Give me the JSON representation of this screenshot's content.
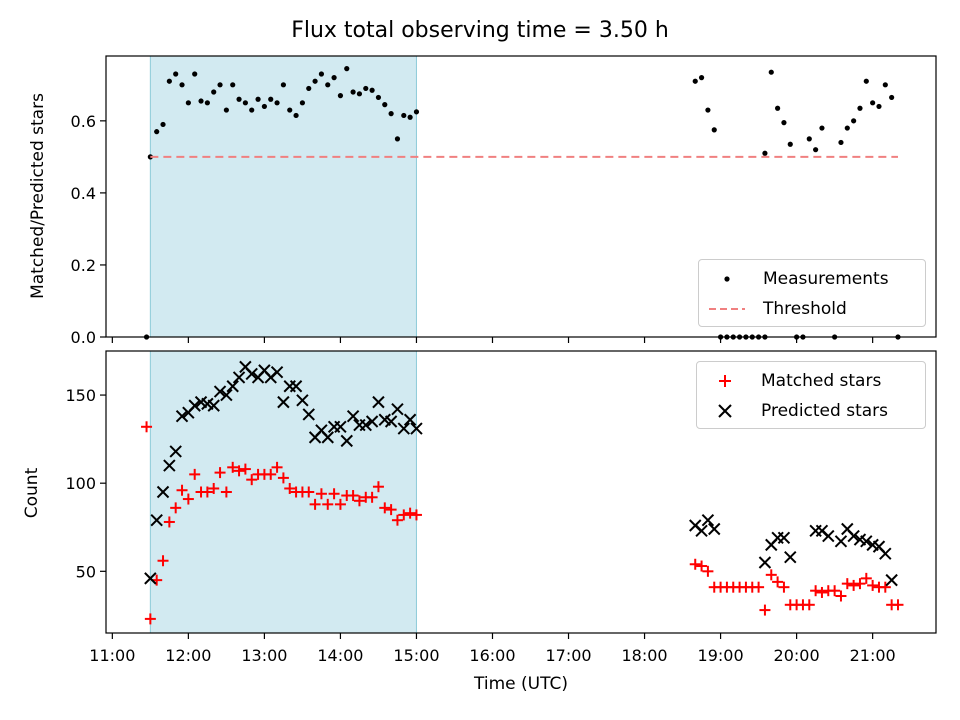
{
  "figure": {
    "title": "Flux total observing time = 3.50 h",
    "xlabel": "Time (UTC)"
  },
  "chart_data": [
    {
      "type": "scatter",
      "panel": "top",
      "ylabel": "Matched/Predicted stars",
      "xlim": [
        "10:55",
        "21:50"
      ],
      "ylim": [
        0,
        0.78
      ],
      "yticks": [
        0.0,
        0.2,
        0.4,
        0.6
      ],
      "xticks": [
        "11:00",
        "12:00",
        "13:00",
        "14:00",
        "15:00",
        "16:00",
        "17:00",
        "18:00",
        "19:00",
        "20:00",
        "21:00"
      ],
      "shaded_interval": {
        "start": "11:30",
        "end": "15:00",
        "color": "#add8e6"
      },
      "legend_position": "lower right",
      "series": [
        {
          "name": "Measurements",
          "marker": "dot",
          "color": "#000000",
          "points": [
            [
              "11:27",
              0.0
            ],
            [
              "11:30",
              0.5
            ],
            [
              "11:35",
              0.57
            ],
            [
              "11:40",
              0.59
            ],
            [
              "11:45",
              0.71
            ],
            [
              "11:50",
              0.73
            ],
            [
              "11:55",
              0.7
            ],
            [
              "12:00",
              0.65
            ],
            [
              "12:05",
              0.73
            ],
            [
              "12:10",
              0.655
            ],
            [
              "12:15",
              0.65
            ],
            [
              "12:20",
              0.68
            ],
            [
              "12:25",
              0.7
            ],
            [
              "12:30",
              0.63
            ],
            [
              "12:35",
              0.7
            ],
            [
              "12:40",
              0.66
            ],
            [
              "12:45",
              0.65
            ],
            [
              "12:50",
              0.63
            ],
            [
              "12:55",
              0.66
            ],
            [
              "13:00",
              0.64
            ],
            [
              "13:05",
              0.66
            ],
            [
              "13:10",
              0.65
            ],
            [
              "13:15",
              0.7
            ],
            [
              "13:20",
              0.63
            ],
            [
              "13:25",
              0.615
            ],
            [
              "13:30",
              0.65
            ],
            [
              "13:35",
              0.69
            ],
            [
              "13:40",
              0.71
            ],
            [
              "13:45",
              0.73
            ],
            [
              "13:50",
              0.7
            ],
            [
              "13:55",
              0.72
            ],
            [
              "14:00",
              0.67
            ],
            [
              "14:05",
              0.745
            ],
            [
              "14:10",
              0.68
            ],
            [
              "14:15",
              0.675
            ],
            [
              "14:20",
              0.69
            ],
            [
              "14:25",
              0.685
            ],
            [
              "14:30",
              0.665
            ],
            [
              "14:35",
              0.645
            ],
            [
              "14:40",
              0.62
            ],
            [
              "14:45",
              0.55
            ],
            [
              "14:50",
              0.615
            ],
            [
              "14:55",
              0.61
            ],
            [
              "15:00",
              0.625
            ],
            [
              "18:40",
              0.71
            ],
            [
              "18:45",
              0.72
            ],
            [
              "18:50",
              0.63
            ],
            [
              "18:55",
              0.575
            ],
            [
              "19:00",
              0.0
            ],
            [
              "19:05",
              0.0
            ],
            [
              "19:10",
              0.0
            ],
            [
              "19:15",
              0.0
            ],
            [
              "19:20",
              0.0
            ],
            [
              "19:25",
              0.0
            ],
            [
              "19:30",
              0.0
            ],
            [
              "19:35",
              0.0
            ],
            [
              "19:35",
              0.51
            ],
            [
              "19:40",
              0.735
            ],
            [
              "19:45",
              0.635
            ],
            [
              "19:50",
              0.595
            ],
            [
              "19:55",
              0.535
            ],
            [
              "20:00",
              0.0
            ],
            [
              "20:05",
              0.0
            ],
            [
              "20:10",
              0.55
            ],
            [
              "20:15",
              0.52
            ],
            [
              "20:20",
              0.58
            ],
            [
              "20:30",
              0.0
            ],
            [
              "20:35",
              0.54
            ],
            [
              "20:40",
              0.58
            ],
            [
              "20:45",
              0.6
            ],
            [
              "20:50",
              0.635
            ],
            [
              "20:55",
              0.71
            ],
            [
              "21:00",
              0.65
            ],
            [
              "21:05",
              0.64
            ],
            [
              "21:10",
              0.7
            ],
            [
              "21:15",
              0.665
            ],
            [
              "21:20",
              0.0
            ]
          ]
        },
        {
          "name": "Threshold",
          "type": "line",
          "style": "dashed",
          "color": "#f08080",
          "points": [
            [
              "11:30",
              0.5
            ],
            [
              "21:20",
              0.5
            ]
          ]
        }
      ]
    },
    {
      "type": "scatter",
      "panel": "bottom",
      "ylabel": "Count",
      "xlim": [
        "10:55",
        "21:50"
      ],
      "ylim": [
        15,
        175
      ],
      "yticks": [
        50,
        100,
        150
      ],
      "xticks": [
        "11:00",
        "12:00",
        "13:00",
        "14:00",
        "15:00",
        "16:00",
        "17:00",
        "18:00",
        "19:00",
        "20:00",
        "21:00"
      ],
      "shaded_interval": {
        "start": "11:30",
        "end": "15:00",
        "color": "#add8e6"
      },
      "legend_position": "upper right",
      "series": [
        {
          "name": "Matched stars",
          "marker": "plus",
          "color": "#ff0000",
          "points": [
            [
              "11:27",
              132
            ],
            [
              "11:30",
              23
            ],
            [
              "11:35",
              45
            ],
            [
              "11:40",
              56
            ],
            [
              "11:45",
              78
            ],
            [
              "11:50",
              86
            ],
            [
              "11:55",
              96
            ],
            [
              "12:00",
              91
            ],
            [
              "12:05",
              105
            ],
            [
              "12:10",
              95
            ],
            [
              "12:15",
              95
            ],
            [
              "12:20",
              97
            ],
            [
              "12:25",
              106
            ],
            [
              "12:30",
              95
            ],
            [
              "12:35",
              109
            ],
            [
              "12:40",
              107
            ],
            [
              "12:45",
              108
            ],
            [
              "12:50",
              102
            ],
            [
              "12:55",
              105
            ],
            [
              "13:00",
              105
            ],
            [
              "13:05",
              105
            ],
            [
              "13:10",
              109
            ],
            [
              "13:15",
              103
            ],
            [
              "13:20",
              97
            ],
            [
              "13:25",
              95
            ],
            [
              "13:30",
              95
            ],
            [
              "13:35",
              95
            ],
            [
              "13:40",
              88
            ],
            [
              "13:45",
              94
            ],
            [
              "13:50",
              88
            ],
            [
              "13:55",
              94
            ],
            [
              "14:00",
              88
            ],
            [
              "14:05",
              93
            ],
            [
              "14:10",
              93
            ],
            [
              "14:15",
              90
            ],
            [
              "14:20",
              92
            ],
            [
              "14:25",
              92
            ],
            [
              "14:30",
              98
            ],
            [
              "14:35",
              86
            ],
            [
              "14:40",
              85
            ],
            [
              "14:45",
              79
            ],
            [
              "14:50",
              82
            ],
            [
              "14:55",
              83
            ],
            [
              "15:00",
              82
            ],
            [
              "18:40",
              54
            ],
            [
              "18:45",
              53
            ],
            [
              "18:50",
              50
            ],
            [
              "18:55",
              41
            ],
            [
              "19:00",
              41
            ],
            [
              "19:05",
              41
            ],
            [
              "19:10",
              41
            ],
            [
              "19:15",
              41
            ],
            [
              "19:20",
              41
            ],
            [
              "19:25",
              41
            ],
            [
              "19:30",
              41
            ],
            [
              "19:35",
              28
            ],
            [
              "19:40",
              48
            ],
            [
              "19:45",
              44
            ],
            [
              "19:50",
              41
            ],
            [
              "19:55",
              31
            ],
            [
              "20:00",
              31
            ],
            [
              "20:05",
              31
            ],
            [
              "20:10",
              31
            ],
            [
              "20:15",
              39
            ],
            [
              "20:20",
              38
            ],
            [
              "20:25",
              39
            ],
            [
              "20:30",
              39
            ],
            [
              "20:35",
              36
            ],
            [
              "20:40",
              43
            ],
            [
              "20:45",
              42
            ],
            [
              "20:50",
              43
            ],
            [
              "20:55",
              46
            ],
            [
              "21:00",
              42
            ],
            [
              "21:05",
              41
            ],
            [
              "21:10",
              41
            ],
            [
              "21:15",
              31
            ],
            [
              "21:20",
              31
            ]
          ]
        },
        {
          "name": "Predicted stars",
          "marker": "x",
          "color": "#000000",
          "points": [
            [
              "11:30",
              46
            ],
            [
              "11:35",
              79
            ],
            [
              "11:40",
              95
            ],
            [
              "11:45",
              110
            ],
            [
              "11:50",
              118
            ],
            [
              "11:55",
              138
            ],
            [
              "12:00",
              140
            ],
            [
              "12:05",
              144
            ],
            [
              "12:10",
              146
            ],
            [
              "12:15",
              145
            ],
            [
              "12:20",
              144
            ],
            [
              "12:25",
              152
            ],
            [
              "12:30",
              150
            ],
            [
              "12:35",
              155
            ],
            [
              "12:40",
              160
            ],
            [
              "12:45",
              166
            ],
            [
              "12:50",
              162
            ],
            [
              "12:55",
              160
            ],
            [
              "13:00",
              164
            ],
            [
              "13:05",
              160
            ],
            [
              "13:10",
              163
            ],
            [
              "13:15",
              146
            ],
            [
              "13:20",
              155
            ],
            [
              "13:25",
              155
            ],
            [
              "13:30",
              147
            ],
            [
              "13:35",
              139
            ],
            [
              "13:40",
              126
            ],
            [
              "13:45",
              130
            ],
            [
              "13:50",
              126
            ],
            [
              "13:55",
              132
            ],
            [
              "14:00",
              132
            ],
            [
              "14:05",
              124
            ],
            [
              "14:10",
              138
            ],
            [
              "14:15",
              133
            ],
            [
              "14:20",
              133
            ],
            [
              "14:25",
              135
            ],
            [
              "14:30",
              146
            ],
            [
              "14:35",
              136
            ],
            [
              "14:40",
              135
            ],
            [
              "14:45",
              142
            ],
            [
              "14:50",
              131
            ],
            [
              "14:55",
              136
            ],
            [
              "15:00",
              131
            ],
            [
              "18:40",
              76
            ],
            [
              "18:45",
              73
            ],
            [
              "18:50",
              79
            ],
            [
              "18:55",
              74
            ],
            [
              "19:35",
              55
            ],
            [
              "19:40",
              65
            ],
            [
              "19:45",
              69
            ],
            [
              "19:50",
              69
            ],
            [
              "19:55",
              58
            ],
            [
              "20:15",
              73
            ],
            [
              "20:20",
              73
            ],
            [
              "20:25",
              70
            ],
            [
              "20:35",
              67
            ],
            [
              "20:40",
              74
            ],
            [
              "20:45",
              70
            ],
            [
              "20:50",
              68
            ],
            [
              "20:55",
              67
            ],
            [
              "21:00",
              65
            ],
            [
              "21:05",
              64
            ],
            [
              "21:10",
              60
            ],
            [
              "21:15",
              45
            ]
          ]
        }
      ]
    }
  ]
}
